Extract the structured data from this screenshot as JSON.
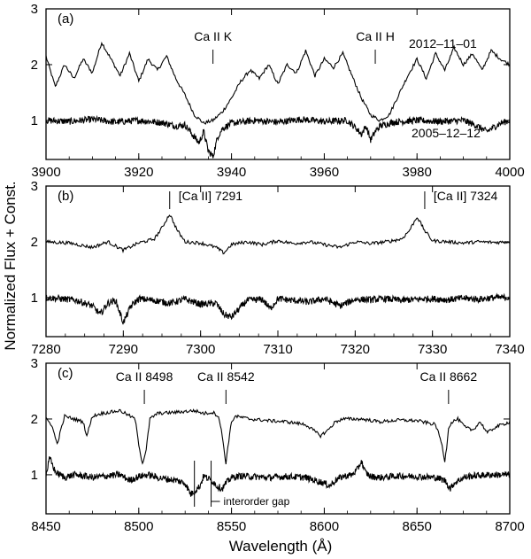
{
  "ylabel": "Normalized Flux + Const.",
  "xlabel": "Wavelength (Å)",
  "chart_data": [
    {
      "type": "line",
      "panel_label": "(a)",
      "xlim": [
        3900,
        4000
      ],
      "ylim": [
        0.3,
        3
      ],
      "x_ticks": [
        3900,
        3920,
        3940,
        3960,
        3980,
        4000
      ],
      "y_ticks": [
        1,
        2,
        3
      ],
      "series": [
        {
          "name": "2012-11-01",
          "x": [
            3900,
            3902,
            3904,
            3906,
            3908,
            3910,
            3912,
            3914,
            3916,
            3918,
            3920,
            3922,
            3924,
            3926,
            3928,
            3930,
            3932,
            3934,
            3936,
            3938,
            3940,
            3942,
            3944,
            3946,
            3948,
            3950,
            3952,
            3954,
            3956,
            3958,
            3960,
            3962,
            3964,
            3966,
            3968,
            3970,
            3972,
            3974,
            3976,
            3978,
            3980,
            3982,
            3984,
            3986,
            3988,
            3990,
            3992,
            3994,
            3996,
            3998,
            4000
          ],
          "y": [
            2.15,
            1.6,
            2.0,
            1.75,
            2.1,
            1.85,
            2.4,
            2.1,
            1.8,
            2.2,
            1.7,
            2.1,
            1.9,
            2.15,
            1.75,
            1.45,
            1.1,
            0.95,
            1.0,
            1.15,
            1.4,
            1.7,
            1.9,
            1.75,
            2.0,
            1.65,
            2.0,
            1.85,
            2.25,
            1.8,
            2.1,
            1.95,
            2.2,
            1.8,
            1.4,
            1.1,
            1.0,
            1.1,
            1.45,
            1.8,
            2.1,
            1.75,
            2.2,
            1.9,
            2.3,
            2.0,
            2.2,
            1.9,
            2.25,
            2.1,
            2.0
          ]
        },
        {
          "name": "2005-12-12",
          "x": [
            3900,
            3905,
            3910,
            3915,
            3920,
            3925,
            3928,
            3930,
            3932,
            3933,
            3934,
            3935,
            3936,
            3937,
            3938,
            3940,
            3945,
            3950,
            3955,
            3960,
            3965,
            3967,
            3968,
            3969,
            3970,
            3971,
            3972,
            3975,
            3980,
            3985,
            3990,
            3993,
            3995,
            3998,
            4000
          ],
          "y": [
            1.0,
            0.98,
            1.02,
            0.97,
            1.0,
            0.96,
            0.9,
            0.92,
            0.7,
            0.6,
            0.8,
            0.45,
            0.35,
            0.7,
            0.85,
            0.95,
            1.0,
            0.97,
            1.02,
            0.98,
            1.0,
            0.85,
            0.75,
            0.9,
            0.65,
            0.8,
            0.9,
            0.97,
            1.0,
            0.98,
            1.0,
            0.9,
            0.8,
            0.95,
            1.0
          ]
        }
      ],
      "annotations": [
        {
          "text": "Ca II K",
          "x": 3936
        },
        {
          "text": "Ca II H",
          "x": 3971
        }
      ],
      "series_labels": [
        {
          "text": "2012–11–01"
        },
        {
          "text": "2005–12–12"
        }
      ]
    },
    {
      "type": "line",
      "panel_label": "(b)",
      "xlim": [
        7280,
        7340
      ],
      "ylim": [
        0.3,
        3
      ],
      "x_ticks": [
        7280,
        7290,
        7300,
        7310,
        7320,
        7330,
        7340
      ],
      "y_ticks": [
        1,
        2,
        3
      ],
      "series": [
        {
          "name": "2012-11-01",
          "x": [
            7280,
            7283,
            7286,
            7288,
            7290,
            7292,
            7294,
            7295,
            7296,
            7297,
            7298,
            7300,
            7302,
            7303,
            7304,
            7306,
            7308,
            7310,
            7312,
            7314,
            7316,
            7318,
            7320,
            7322,
            7324,
            7326,
            7327,
            7328,
            7329,
            7330,
            7332,
            7334,
            7336,
            7338,
            7340
          ],
          "y": [
            2.0,
            1.98,
            1.9,
            2.0,
            1.85,
            1.98,
            2.05,
            2.25,
            2.5,
            2.2,
            2.0,
            1.98,
            1.9,
            1.8,
            1.95,
            2.0,
            1.95,
            2.02,
            1.97,
            2.0,
            1.95,
            1.9,
            2.0,
            1.97,
            2.0,
            2.05,
            2.2,
            2.45,
            2.2,
            2.02,
            2.0,
            1.98,
            2.0,
            1.99,
            2.0
          ]
        },
        {
          "name": "2005-12-12",
          "x": [
            7280,
            7282,
            7284,
            7286,
            7287,
            7288,
            7289,
            7290,
            7291,
            7292,
            7294,
            7296,
            7298,
            7300,
            7302,
            7303,
            7304,
            7306,
            7308,
            7309,
            7310,
            7312,
            7314,
            7316,
            7318,
            7320,
            7322,
            7324,
            7326,
            7328,
            7330,
            7332,
            7334,
            7336,
            7338,
            7340
          ],
          "y": [
            1.0,
            0.98,
            0.95,
            0.85,
            0.7,
            0.9,
            0.95,
            0.55,
            0.85,
            0.98,
            0.95,
            0.9,
            0.97,
            0.88,
            0.9,
            0.7,
            0.65,
            0.95,
            0.97,
            0.8,
            0.98,
            0.95,
            0.92,
            0.98,
            0.85,
            0.97,
            0.96,
            0.98,
            0.95,
            0.97,
            0.98,
            0.96,
            0.99,
            0.97,
            1.0,
            1.0
          ]
        }
      ],
      "annotations": [
        {
          "text": "[Ca II] 7291",
          "x": 7296
        },
        {
          "text": "[Ca II] 7324",
          "x": 7329
        }
      ]
    },
    {
      "type": "line",
      "panel_label": "(c)",
      "xlim": [
        8450,
        8700
      ],
      "ylim": [
        0.3,
        3
      ],
      "x_ticks": [
        8450,
        8500,
        8550,
        8600,
        8650,
        8700
      ],
      "y_ticks": [
        1,
        2,
        3
      ],
      "series": [
        {
          "name": "2012-11-01",
          "x": [
            8450,
            8453,
            8456,
            8460,
            8465,
            8470,
            8472,
            8475,
            8480,
            8490,
            8498,
            8500,
            8502,
            8504,
            8506,
            8510,
            8520,
            8530,
            8535,
            8540,
            8543,
            8545,
            8547,
            8548,
            8550,
            8552,
            8560,
            8570,
            8580,
            8590,
            8598,
            8602,
            8606,
            8610,
            8620,
            8630,
            8640,
            8650,
            8660,
            8663,
            8665,
            8666,
            8667,
            8669,
            8672,
            8676,
            8680,
            8684,
            8688,
            8692,
            8696,
            8700
          ],
          "y": [
            2.0,
            1.9,
            1.55,
            2.05,
            2.0,
            1.95,
            1.7,
            2.05,
            2.1,
            2.15,
            2.0,
            1.55,
            1.2,
            1.45,
            2.0,
            2.1,
            2.12,
            2.15,
            2.1,
            2.12,
            2.05,
            1.7,
            1.2,
            1.5,
            1.95,
            2.05,
            2.0,
            1.97,
            1.95,
            1.9,
            1.7,
            1.8,
            1.95,
            2.0,
            2.0,
            1.95,
            1.98,
            1.97,
            1.9,
            1.6,
            1.25,
            1.5,
            1.85,
            1.95,
            2.0,
            1.85,
            1.8,
            1.95,
            1.75,
            1.85,
            1.9,
            1.95
          ]
        },
        {
          "name": "2005-12-12",
          "x": [
            8450,
            8452,
            8455,
            8460,
            8465,
            8470,
            8475,
            8480,
            8490,
            8495,
            8500,
            8505,
            8510,
            8520,
            8525,
            8528,
            8530,
            8533,
            8535,
            8540,
            8542,
            8545,
            8547,
            8550,
            8555,
            8560,
            8570,
            8580,
            8590,
            8600,
            8603,
            8606,
            8610,
            8615,
            8618,
            8620,
            8622,
            8625,
            8630,
            8640,
            8650,
            8660,
            8665,
            8668,
            8670,
            8675,
            8680,
            8690,
            8700
          ],
          "y": [
            1.0,
            1.3,
            1.05,
            0.95,
            1.0,
            0.98,
            0.95,
            0.97,
            1.0,
            0.9,
            0.97,
            1.0,
            0.95,
            0.9,
            0.85,
            0.65,
            0.7,
            0.8,
            0.98,
            0.88,
            0.8,
            0.75,
            0.85,
            0.95,
            0.98,
            0.97,
            0.95,
            0.97,
            0.95,
            0.85,
            0.8,
            0.9,
            0.97,
            1.0,
            1.1,
            1.25,
            1.05,
            0.97,
            0.95,
            0.98,
            0.97,
            0.95,
            0.9,
            0.75,
            0.85,
            0.95,
            0.98,
            1.0,
            1.0
          ]
        }
      ],
      "annotations": [
        {
          "text": "Ca II 8498",
          "x": 8503
        },
        {
          "text": "Ca II 8542",
          "x": 8547
        },
        {
          "text": "Ca II 8662",
          "x": 8667
        }
      ],
      "gap_note": {
        "text": "interorder gap",
        "x_start": 8530,
        "x_end": 8539
      }
    }
  ]
}
